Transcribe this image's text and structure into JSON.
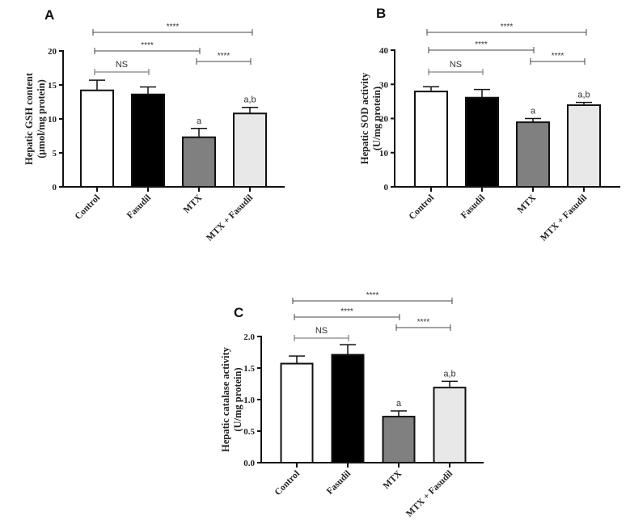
{
  "chart_data": [
    {
      "type": "bar",
      "panel_label": "A",
      "ylabel": [
        "Hepatic GSH content",
        "(µmol/mg protein)"
      ],
      "categories": [
        "Control",
        "Fasudil",
        "MTX",
        "MTX + Fasudil"
      ],
      "values": [
        14.2,
        13.6,
        7.3,
        10.8
      ],
      "errors": [
        1.5,
        1.1,
        1.3,
        0.9
      ],
      "bar_colors": [
        "#ffffff",
        "#000000",
        "#808080",
        "#e8e8e8"
      ],
      "bar_annotations": [
        "",
        "",
        "a",
        "a,b"
      ],
      "ylim": [
        0,
        20
      ],
      "yticks": [
        0,
        5,
        10,
        15,
        20
      ],
      "ytick_labels": [
        "0",
        "5",
        "10",
        "15",
        "20"
      ],
      "comparisons": [
        {
          "from": 0,
          "to": 3,
          "label": "****"
        },
        {
          "from": 0,
          "to": 2,
          "label": "****"
        },
        {
          "from": 2,
          "to": 3,
          "label": "****"
        },
        {
          "from": 0,
          "to": 1,
          "label": "NS"
        }
      ]
    },
    {
      "type": "bar",
      "panel_label": "B",
      "ylabel": [
        "Hepatic SOD activity",
        "(U/mg protein)"
      ],
      "categories": [
        "Control",
        "Fasudil",
        "MTX",
        "MTX + Fasudil"
      ],
      "values": [
        27.9,
        26.1,
        18.9,
        23.9
      ],
      "errors": [
        1.4,
        2.4,
        1.1,
        0.8
      ],
      "bar_colors": [
        "#ffffff",
        "#000000",
        "#808080",
        "#e8e8e8"
      ],
      "bar_annotations": [
        "",
        "",
        "a",
        "a,b"
      ],
      "ylim": [
        0,
        40
      ],
      "yticks": [
        0,
        10,
        20,
        30,
        40
      ],
      "ytick_labels": [
        "0",
        "10",
        "20",
        "30",
        "40"
      ],
      "comparisons": [
        {
          "from": 0,
          "to": 3,
          "label": "****"
        },
        {
          "from": 0,
          "to": 2,
          "label": "****"
        },
        {
          "from": 2,
          "to": 3,
          "label": "****"
        },
        {
          "from": 0,
          "to": 1,
          "label": "NS"
        }
      ]
    },
    {
      "type": "bar",
      "panel_label": "C",
      "ylabel": [
        "Hepatic catalase activity",
        "(U/mg protein)"
      ],
      "categories": [
        "Control",
        "Fasudil",
        "MTX",
        "MTX + Fasudil"
      ],
      "values": [
        1.57,
        1.71,
        0.73,
        1.19
      ],
      "errors": [
        0.12,
        0.16,
        0.09,
        0.1
      ],
      "bar_colors": [
        "#ffffff",
        "#000000",
        "#808080",
        "#e8e8e8"
      ],
      "bar_annotations": [
        "",
        "",
        "a",
        "a,b"
      ],
      "ylim": [
        0,
        2
      ],
      "yticks": [
        0,
        0.5,
        1,
        1.5,
        2
      ],
      "ytick_labels": [
        "0.0",
        "0.5",
        "1.0",
        "1.5",
        "2.0"
      ],
      "comparisons": [
        {
          "from": 0,
          "to": 3,
          "label": "****"
        },
        {
          "from": 0,
          "to": 2,
          "label": "****"
        },
        {
          "from": 2,
          "to": 3,
          "label": "****"
        },
        {
          "from": 0,
          "to": 1,
          "label": "NS"
        }
      ]
    }
  ]
}
